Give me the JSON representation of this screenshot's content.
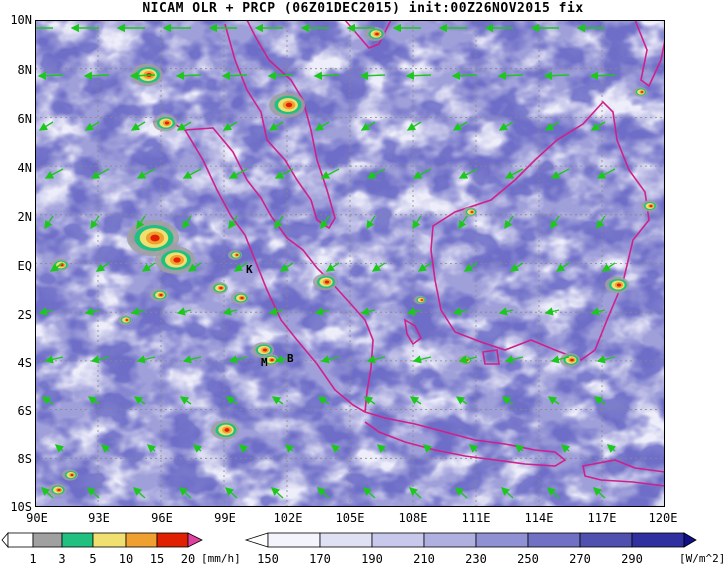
{
  "title": "NICAM OLR + PRCP (06Z01DEC2015) init:00Z26NOV2015 fix",
  "y_ticks": [
    "10N",
    "8N",
    "6N",
    "4N",
    "2N",
    "EQ",
    "2S",
    "4S",
    "6S",
    "8S",
    "10S"
  ],
  "x_ticks": [
    "90E",
    "93E",
    "96E",
    "99E",
    "102E",
    "105E",
    "108E",
    "111E",
    "114E",
    "117E",
    "120E"
  ],
  "stations": {
    "k": "K",
    "m": "M",
    "b": "B"
  },
  "prcp_legend": {
    "labels": [
      "1",
      "3",
      "5",
      "10",
      "15",
      "20"
    ],
    "unit": "[mm/h]",
    "colors": [
      "#a0a0a0",
      "#20c080",
      "#f0e070",
      "#f0a030",
      "#e02000",
      "#e040a0"
    ]
  },
  "olr_legend": {
    "labels": [
      "150",
      "170",
      "190",
      "210",
      "230",
      "250",
      "270",
      "290"
    ],
    "unit": "[W/m^2]",
    "colors": [
      "#f4f4fc",
      "#e0e0f4",
      "#c8c8ec",
      "#b0b0e0",
      "#9090d4",
      "#7070c4",
      "#5050b0",
      "#3030a0",
      "#101088"
    ]
  },
  "colors": {
    "coast": "#d0208a",
    "wind": "#1cc81c",
    "grid": "#888888"
  }
}
